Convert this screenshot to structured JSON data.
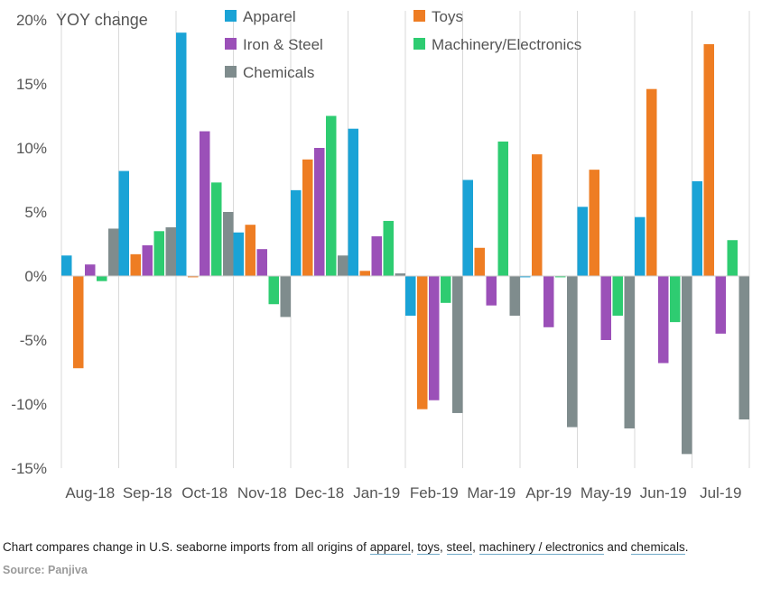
{
  "chart_data": {
    "type": "bar",
    "ylabel": "YOY change",
    "ylim": [
      -15,
      20
    ],
    "yticks": [
      20,
      15,
      10,
      5,
      0,
      -5,
      -10,
      -15
    ],
    "ytick_labels": [
      "20%",
      "15%",
      "10%",
      "5%",
      "0%",
      "-5%",
      "-10%",
      "-15%"
    ],
    "legend_position": "top",
    "categories": [
      "Aug-18",
      "Sep-18",
      "Oct-18",
      "Nov-18",
      "Dec-18",
      "Jan-19",
      "Feb-19",
      "Mar-19",
      "Apr-19",
      "May-19",
      "Jun-19",
      "Jul-19"
    ],
    "series": [
      {
        "name": "Apparel",
        "color": "#1aa3d6",
        "values": [
          1.6,
          8.2,
          19.0,
          3.4,
          6.7,
          11.5,
          -3.1,
          7.5,
          -0.1,
          5.4,
          4.6,
          7.4
        ]
      },
      {
        "name": "Toys",
        "color": "#ee7d23",
        "values": [
          -7.2,
          1.7,
          -0.1,
          4.0,
          9.1,
          0.4,
          -10.4,
          2.2,
          9.5,
          8.3,
          14.6,
          18.1
        ]
      },
      {
        "name": "Iron & Steel",
        "color": "#9b50b8",
        "values": [
          0.9,
          2.4,
          11.3,
          2.1,
          10.0,
          3.1,
          -9.7,
          -2.3,
          -4.0,
          -5.0,
          -6.8,
          -4.5
        ]
      },
      {
        "name": "Machinery/Electronics",
        "color": "#2ecc71",
        "values": [
          -0.4,
          3.5,
          7.3,
          -2.2,
          12.5,
          4.3,
          -2.1,
          10.5,
          -0.1,
          -3.1,
          -3.6,
          2.8
        ]
      },
      {
        "name": "Chemicals",
        "color": "#7f8c8d",
        "values": [
          3.7,
          3.8,
          5.0,
          -3.2,
          1.6,
          0.2,
          -10.7,
          -3.1,
          -11.8,
          -11.9,
          -13.9,
          -11.2
        ]
      }
    ]
  },
  "caption": {
    "prefix": "Chart compares change in U.S. seaborne imports from all origins of ",
    "apparel": "apparel",
    "sep1": ", ",
    "toys": "toys",
    "sep2": ", ",
    "steel": "steel",
    "sep3": ", ",
    "machinery": "machinery / electronics",
    "sep4": " and ",
    "chemicals": "chemicals",
    "suffix": "."
  },
  "source": "Source: Panjiva"
}
